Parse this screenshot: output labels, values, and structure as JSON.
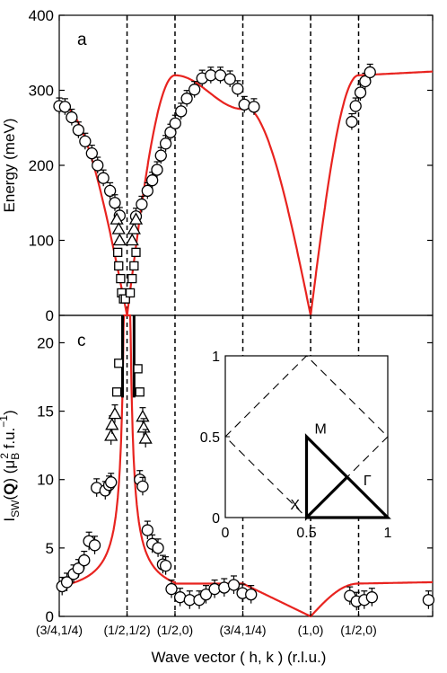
{
  "figure": {
    "xlabel": "Wave vector ( h, k ) (r.l.u.)",
    "xtick_labels": [
      "(3/4,1/4)",
      "(1/2,1/2)",
      "(1/2,0)",
      "(3/4,1/4)",
      "(1,0)",
      "(1/2,0)"
    ],
    "colors": {
      "fit_line": "#e8231f",
      "data": "#000000"
    }
  },
  "chart_data": [
    {
      "type": "scatter",
      "panel_label": "a",
      "ylabel": "Energy (meV)",
      "ylim": [
        0,
        400
      ],
      "yticks": [
        0,
        100,
        200,
        300,
        400
      ],
      "xlim": [
        0,
        3.893
      ],
      "x_segments": {
        "boundaries": [
          0,
          0.707,
          1.207,
          1.914,
          2.621,
          3.121,
          3.893
        ],
        "labels": [
          "(3/4,1/4)",
          "(1/2,1/2)",
          "(1/2,0)",
          "(3/4,1/4)",
          "(1,0)",
          "(1/2,0)"
        ],
        "dashed_lines_at": [
          0.707,
          1.207,
          1.914,
          2.621,
          3.121
        ]
      },
      "series": [
        {
          "marker": "circle",
          "x": [
            0.0,
            0.06,
            0.13,
            0.2,
            0.27,
            0.34,
            0.4,
            0.46,
            0.53,
            0.58,
            0.63,
            0.8,
            0.86,
            0.92,
            0.97,
            1.02,
            1.06,
            1.11,
            1.16,
            1.21,
            1.27,
            1.33,
            1.41,
            1.49,
            1.58,
            1.68,
            1.78,
            1.86,
            1.93,
            2.03
          ],
          "y": [
            279,
            278,
            264,
            247,
            232,
            216,
            200,
            183,
            166,
            150,
            133,
            132,
            148,
            166,
            180,
            194,
            213,
            229,
            244,
            256,
            272,
            289,
            301,
            316,
            320,
            320,
            315,
            302,
            281,
            278
          ],
          "errorbars": true
        },
        {
          "marker": "circle",
          "x": [
            3.05,
            3.09,
            3.14,
            3.19,
            3.24
          ],
          "y": [
            258,
            279,
            297,
            312,
            324
          ],
          "errorbars": true
        },
        {
          "marker": "triangle",
          "x": [
            0.6,
            0.62,
            0.63,
            0.76,
            0.78,
            0.8
          ],
          "y": [
            128,
            115,
            100,
            100,
            115,
            128
          ]
        },
        {
          "marker": "square",
          "x": [
            0.61,
            0.62,
            0.64,
            0.65,
            0.67,
            0.69,
            0.74,
            0.76,
            0.78,
            0.8
          ],
          "y": [
            84,
            66,
            49,
            30,
            22,
            22,
            30,
            49,
            66,
            84
          ]
        }
      ]
    },
    {
      "type": "scatter",
      "panel_label": "c",
      "ylabel_main": "I",
      "ylabel_sub": "SW",
      "ylabel_bold": "Q",
      "ylabel_unit": "(μ",
      "ylabel_unit_sub": "B",
      "ylabel_unit_sup": "2",
      "ylabel_unit_tail": " f.u.",
      "ylabel_unit_sup2": "−1",
      "ylabel_close": ")",
      "ylim": [
        0,
        22
      ],
      "yticks": [
        0,
        5,
        10,
        15,
        20
      ],
      "series": [
        {
          "marker": "circle",
          "x": [
            0.03,
            0.08,
            0.15,
            0.2,
            0.26,
            0.31,
            0.37,
            0.39,
            0.48,
            0.52,
            0.54,
            0.84,
            0.87,
            0.92,
            0.97,
            1.03,
            1.08,
            1.11,
            1.17,
            1.26,
            1.36,
            1.46,
            1.53,
            1.62,
            1.72,
            1.82,
            1.91,
            2.0,
            3.03,
            3.1,
            3.18,
            3.26,
            3.85
          ],
          "y": [
            2.2,
            2.5,
            3.1,
            3.5,
            4.1,
            5.5,
            5.2,
            9.4,
            9.2,
            9.6,
            9.8,
            10.0,
            9.5,
            6.3,
            5.3,
            5.0,
            3.8,
            3.7,
            2.0,
            1.4,
            1.2,
            1.2,
            1.6,
            2.0,
            2.1,
            2.3,
            1.7,
            1.6,
            1.5,
            1.1,
            1.2,
            1.4,
            1.2
          ],
          "errorbars": true
        },
        {
          "marker": "triangle",
          "x": [
            0.54,
            0.55,
            0.58,
            0.87,
            0.88,
            0.9
          ],
          "y": [
            13.2,
            14.0,
            14.8,
            14.6,
            13.8,
            13.0
          ],
          "errorbars": true
        },
        {
          "marker": "square",
          "x": [
            0.6,
            0.62,
            0.82,
            0.84
          ],
          "y": [
            16.4,
            18.5,
            18.1,
            16.4
          ]
        }
      ],
      "inset": {
        "xticks": [
          0,
          0.5,
          1
        ],
        "yticks": [
          0,
          0.5,
          1
        ],
        "xlim": [
          0,
          1
        ],
        "ylim": [
          0,
          1
        ],
        "labels": [
          "X",
          "M",
          "Γ"
        ],
        "label_positions": [
          [
            0.4,
            0.05
          ],
          [
            0.55,
            0.52
          ],
          [
            0.85,
            0.2
          ]
        ],
        "dashed_diamond": [
          [
            0,
            0.5
          ],
          [
            0.5,
            1.0
          ],
          [
            1.0,
            0.5
          ],
          [
            0.5,
            0.0
          ]
        ],
        "solid_path": [
          [
            0.5,
            0
          ],
          [
            1,
            0
          ],
          [
            0.5,
            0.5
          ],
          [
            0.5,
            0
          ],
          [
            0.75,
            0.25
          ]
        ]
      }
    }
  ]
}
